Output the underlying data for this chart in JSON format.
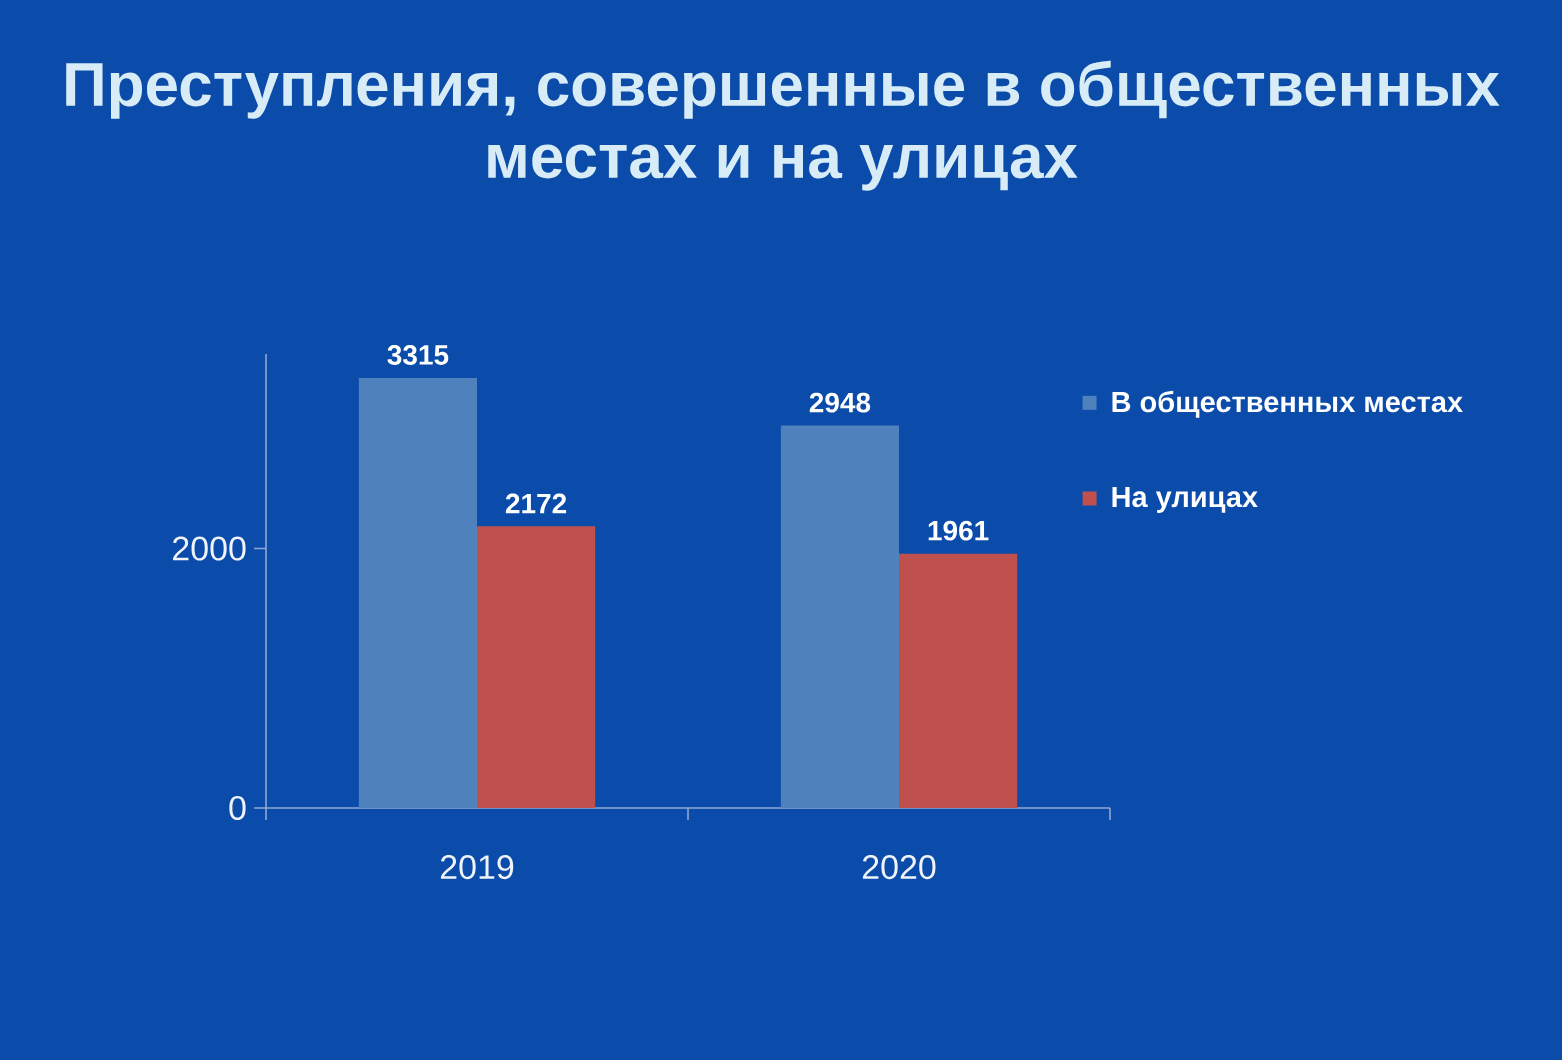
{
  "chart_data": {
    "type": "bar",
    "title": "Преступления, совершенные в общественных местах и на улицах",
    "categories": [
      "2019",
      "2020"
    ],
    "series": [
      {
        "name": "В общественных местах",
        "color": "#4f81bd",
        "values": [
          3315,
          2948
        ]
      },
      {
        "name": "На улицах",
        "color": "#c0504d",
        "values": [
          2172,
          1961
        ]
      }
    ],
    "ylim": [
      0,
      3500
    ],
    "yticks": [
      0,
      2000
    ],
    "data_labels": true,
    "legend": "top right"
  }
}
